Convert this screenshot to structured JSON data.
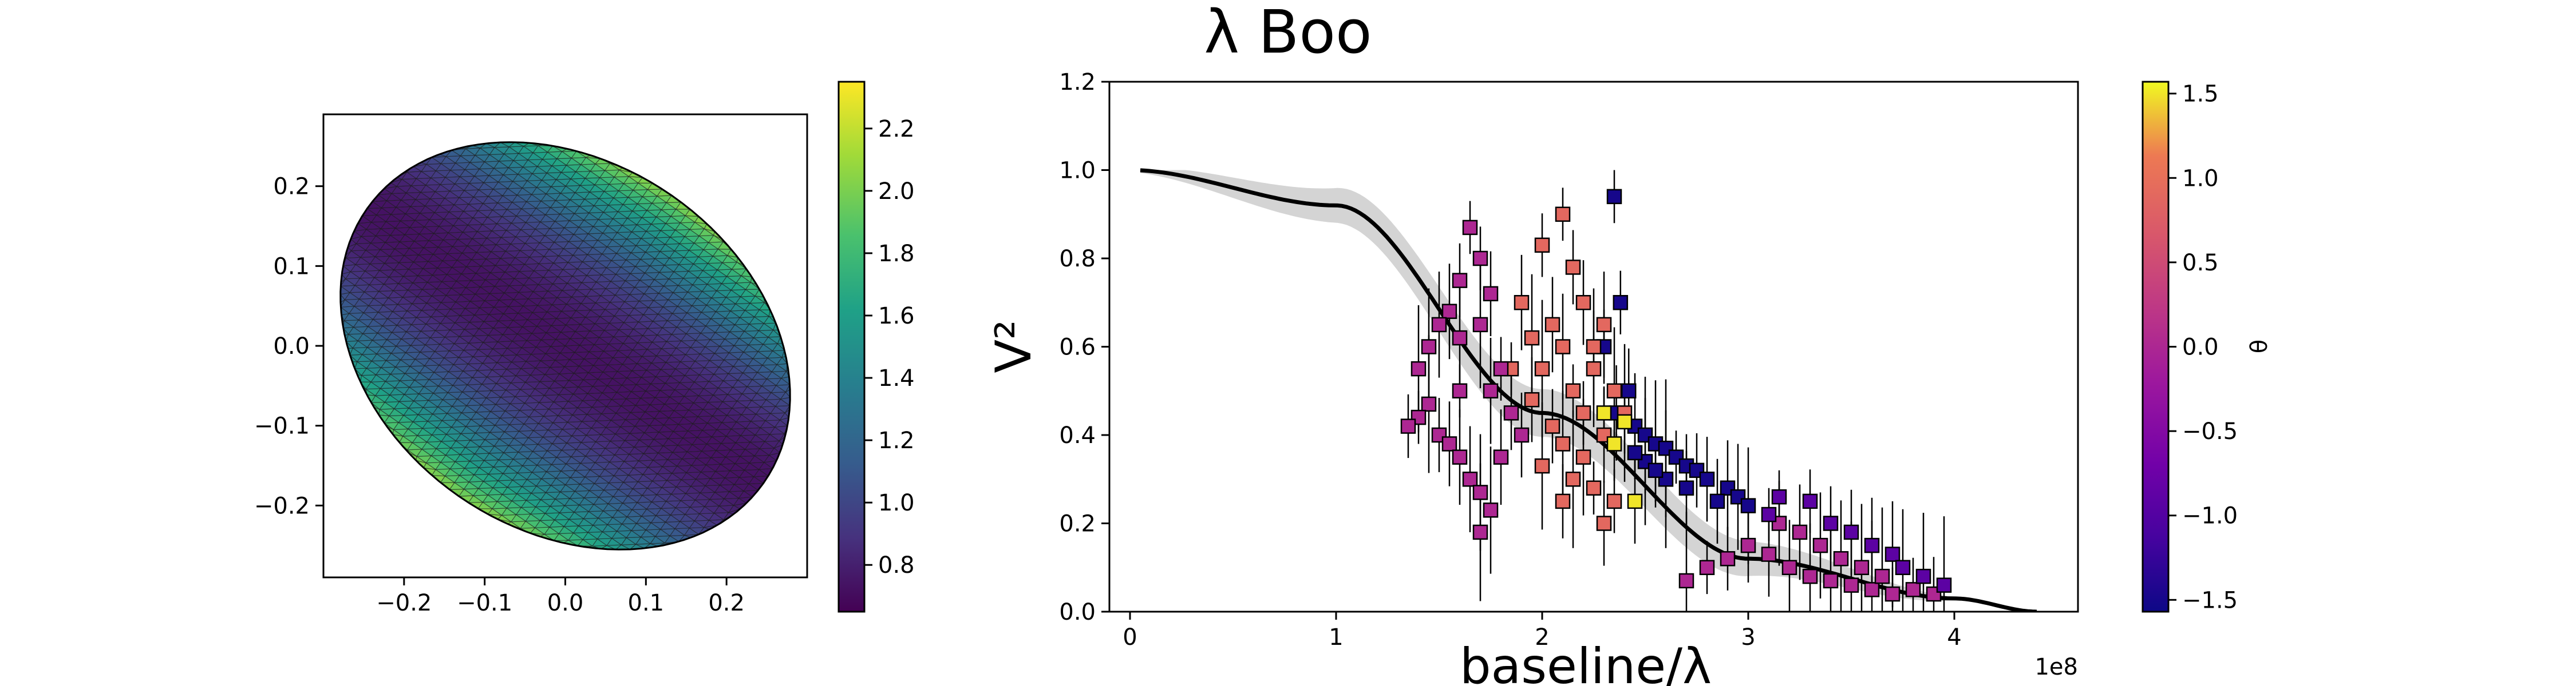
{
  "chart_data": [
    {
      "type": "heatmap",
      "title": "",
      "xlabel": "",
      "ylabel": "",
      "xlim": [
        -0.3,
        0.3
      ],
      "ylim": [
        -0.29,
        0.29
      ],
      "x_ticks": [
        "−0.2",
        "−0.1",
        "0.0",
        "0.1",
        "0.2"
      ],
      "y_ticks": [
        "−0.2",
        "−0.1",
        "0.0",
        "0.1",
        "0.2"
      ],
      "x_tick_values": [
        -0.2,
        -0.1,
        0.0,
        0.1,
        0.2
      ],
      "y_tick_values": [
        -0.2,
        -0.1,
        0.0,
        0.1,
        0.2
      ],
      "surface": {
        "shape": "ellipsoid",
        "semi_major": 0.3,
        "semi_minor": 0.23,
        "orientation_deg": -35,
        "mesh": "triangulated",
        "colormap": "viridis",
        "value_range": [
          0.65,
          2.35
        ]
      },
      "colorbar": {
        "colormap": "viridis",
        "range": [
          0.65,
          2.35
        ],
        "ticks": [
          "0.8",
          "1.0",
          "1.2",
          "1.4",
          "1.6",
          "1.8",
          "2.0",
          "2.2"
        ],
        "tick_values": [
          0.8,
          1.0,
          1.2,
          1.4,
          1.6,
          1.8,
          2.0,
          2.2
        ]
      }
    },
    {
      "type": "scatter",
      "title": "λ Boo",
      "xlabel": "baseline/λ",
      "ylabel": "V²",
      "x_offset_label": "1e8",
      "xlim": [
        -0.1,
        4.6
      ],
      "ylim": [
        0.0,
        1.2
      ],
      "x_scale": 100000000,
      "x_ticks": [
        "0",
        "1",
        "2",
        "3",
        "4"
      ],
      "x_tick_values": [
        0,
        1,
        2,
        3,
        4
      ],
      "y_ticks": [
        "0.0",
        "0.2",
        "0.4",
        "0.6",
        "0.8",
        "1.0",
        "1.2"
      ],
      "y_tick_values": [
        0.0,
        0.2,
        0.4,
        0.6,
        0.8,
        1.0,
        1.2
      ],
      "model": {
        "description": "model V² curve with grey uncertainty band",
        "x_range": [
          0.05,
          4.4
        ],
        "v2_at_zero": 1.0,
        "v2_at_1e8": 0.92,
        "v2_at_2e8": 0.45,
        "v2_at_3e8": 0.12,
        "v2_at_4e8": 0.03
      },
      "series": [
        {
          "color_value": -1.5,
          "marker": "square",
          "points": [
            [
              2.35,
              0.94
            ],
            [
              2.38,
              0.7
            ],
            [
              2.3,
              0.6
            ],
            [
              2.42,
              0.5
            ],
            [
              2.36,
              0.45
            ],
            [
              2.45,
              0.42
            ],
            [
              2.5,
              0.4
            ],
            [
              2.55,
              0.38
            ],
            [
              2.6,
              0.37
            ],
            [
              2.65,
              0.35
            ],
            [
              2.7,
              0.33
            ],
            [
              2.75,
              0.32
            ],
            [
              2.8,
              0.3
            ],
            [
              2.9,
              0.28
            ],
            [
              2.95,
              0.26
            ],
            [
              3.0,
              0.24
            ],
            [
              2.5,
              0.34
            ],
            [
              2.6,
              0.3
            ],
            [
              2.45,
              0.36
            ],
            [
              2.55,
              0.32
            ],
            [
              2.7,
              0.28
            ],
            [
              2.85,
              0.25
            ]
          ]
        },
        {
          "color_value": 0.9,
          "marker": "square",
          "points": [
            [
              2.1,
              0.9
            ],
            [
              2.0,
              0.83
            ],
            [
              2.15,
              0.78
            ],
            [
              2.2,
              0.7
            ],
            [
              2.05,
              0.65
            ],
            [
              2.1,
              0.6
            ],
            [
              2.25,
              0.55
            ],
            [
              1.95,
              0.62
            ],
            [
              2.0,
              0.55
            ],
            [
              2.15,
              0.5
            ],
            [
              2.2,
              0.45
            ],
            [
              2.05,
              0.42
            ],
            [
              1.95,
              0.48
            ],
            [
              2.3,
              0.4
            ],
            [
              2.1,
              0.38
            ],
            [
              2.2,
              0.35
            ],
            [
              2.0,
              0.33
            ],
            [
              2.15,
              0.3
            ],
            [
              2.25,
              0.28
            ],
            [
              2.35,
              0.25
            ],
            [
              2.1,
              0.25
            ],
            [
              2.3,
              0.2
            ],
            [
              1.9,
              0.7
            ],
            [
              2.3,
              0.65
            ],
            [
              2.25,
              0.6
            ],
            [
              2.35,
              0.5
            ],
            [
              2.4,
              0.45
            ],
            [
              1.85,
              0.55
            ]
          ]
        },
        {
          "color_value": 0.0,
          "marker": "square",
          "points": [
            [
              1.65,
              0.87
            ],
            [
              1.7,
              0.8
            ],
            [
              1.6,
              0.75
            ],
            [
              1.75,
              0.72
            ],
            [
              1.55,
              0.68
            ],
            [
              1.5,
              0.65
            ],
            [
              1.45,
              0.6
            ],
            [
              1.4,
              0.55
            ],
            [
              1.45,
              0.47
            ],
            [
              1.4,
              0.44
            ],
            [
              1.35,
              0.42
            ],
            [
              1.5,
              0.4
            ],
            [
              1.55,
              0.38
            ],
            [
              1.6,
              0.35
            ],
            [
              1.65,
              0.3
            ],
            [
              1.7,
              0.27
            ],
            [
              1.75,
              0.23
            ],
            [
              1.7,
              0.18
            ],
            [
              1.6,
              0.5
            ],
            [
              1.8,
              0.55
            ],
            [
              1.85,
              0.45
            ],
            [
              1.9,
              0.4
            ],
            [
              1.8,
              0.35
            ],
            [
              1.75,
              0.5
            ],
            [
              1.6,
              0.62
            ],
            [
              1.7,
              0.65
            ],
            [
              2.7,
              0.07
            ],
            [
              2.8,
              0.1
            ],
            [
              2.9,
              0.12
            ],
            [
              3.0,
              0.15
            ],
            [
              3.1,
              0.13
            ],
            [
              3.2,
              0.1
            ],
            [
              3.3,
              0.08
            ],
            [
              3.4,
              0.07
            ],
            [
              3.5,
              0.06
            ],
            [
              3.6,
              0.05
            ],
            [
              3.7,
              0.04
            ],
            [
              3.8,
              0.05
            ],
            [
              3.9,
              0.04
            ],
            [
              3.15,
              0.2
            ],
            [
              3.25,
              0.18
            ],
            [
              3.35,
              0.15
            ],
            [
              3.45,
              0.12
            ],
            [
              3.55,
              0.1
            ],
            [
              3.65,
              0.08
            ]
          ]
        },
        {
          "color_value": -0.9,
          "marker": "square",
          "points": [
            [
              3.15,
              0.26
            ],
            [
              3.3,
              0.25
            ],
            [
              3.4,
              0.2
            ],
            [
              3.5,
              0.18
            ],
            [
              3.6,
              0.15
            ],
            [
              3.7,
              0.13
            ],
            [
              3.75,
              0.1
            ],
            [
              3.85,
              0.08
            ],
            [
              3.95,
              0.06
            ],
            [
              3.1,
              0.22
            ]
          ]
        },
        {
          "color_value": 1.5,
          "marker": "square",
          "points": [
            [
              2.3,
              0.45
            ],
            [
              2.4,
              0.43
            ],
            [
              2.35,
              0.38
            ],
            [
              2.45,
              0.25
            ]
          ]
        }
      ],
      "colorbar": {
        "label": "θ",
        "colormap": "plasma",
        "range": [
          -1.57,
          1.57
        ],
        "ticks": [
          "−1.5",
          "−1.0",
          "−0.5",
          "0.0",
          "0.5",
          "1.0",
          "1.5"
        ],
        "tick_values": [
          -1.5,
          -1.0,
          -0.5,
          0.0,
          0.5,
          1.0,
          1.5
        ]
      }
    }
  ]
}
